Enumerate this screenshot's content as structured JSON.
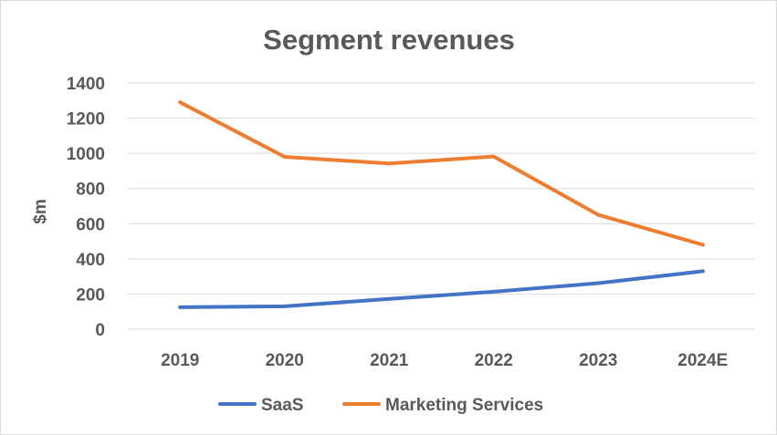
{
  "chart_data": {
    "type": "line",
    "title": "Segment revenues",
    "xlabel": "",
    "ylabel": "$m",
    "categories": [
      "2019",
      "2020",
      "2021",
      "2022",
      "2023",
      "2024E"
    ],
    "ylim": [
      0,
      1400
    ],
    "yticks": [
      0,
      200,
      400,
      600,
      800,
      1000,
      1200,
      1400
    ],
    "grid": true,
    "legend_position": "bottom",
    "series": [
      {
        "name": "SaaS",
        "color": "#4472c4",
        "values": [
          125,
          130,
          172,
          213,
          262,
          330
        ]
      },
      {
        "name": "Marketing Services",
        "color": "#ed7d31",
        "values": [
          1290,
          980,
          942,
          982,
          650,
          480
        ]
      }
    ]
  }
}
